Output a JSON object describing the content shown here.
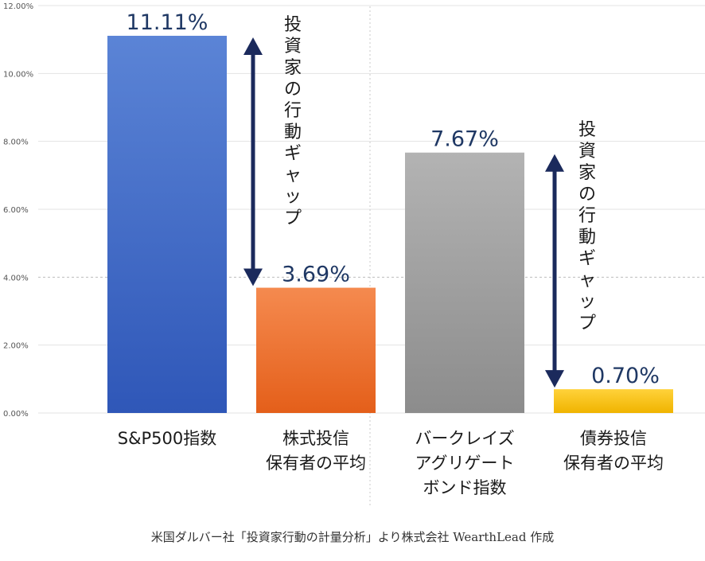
{
  "chart_data": {
    "type": "bar",
    "categories": [
      [
        "S&P500指数"
      ],
      [
        "株式投信",
        "保有者の平均"
      ],
      [
        "バークレイズ",
        "アグリゲート",
        "ボンド指数"
      ],
      [
        "債券投信",
        "保有者の平均"
      ]
    ],
    "values": [
      11.11,
      3.69,
      7.67,
      0.7
    ],
    "value_labels": [
      "11.11%",
      "3.69%",
      "7.67%",
      "0.70%"
    ],
    "colors": {
      "bar_tops": [
        "#5b84d6",
        "#f58a4f",
        "#b3b3b3",
        "#ffd23a"
      ],
      "bar_bottoms": [
        "#2f57b8",
        "#e45f1a",
        "#8c8c8c",
        "#f0b400"
      ],
      "arrow": "#1b2a5c",
      "value_label": "#1f3864"
    },
    "y_ticks": [
      "0.00%",
      "2.00%",
      "4.00%",
      "6.00%",
      "8.00%",
      "10.00%",
      "12.00%"
    ],
    "ylim": [
      0,
      12
    ],
    "annotations": [
      {
        "text": "投資家の行動ギャップ",
        "from": 11.11,
        "to": 3.69
      },
      {
        "text": "投資家の行動ギャップ",
        "from": 7.67,
        "to": 0.7
      }
    ],
    "source": "米国ダルバー社「投資家行動の計量分析」より株式会社 WearthLead 作成"
  }
}
